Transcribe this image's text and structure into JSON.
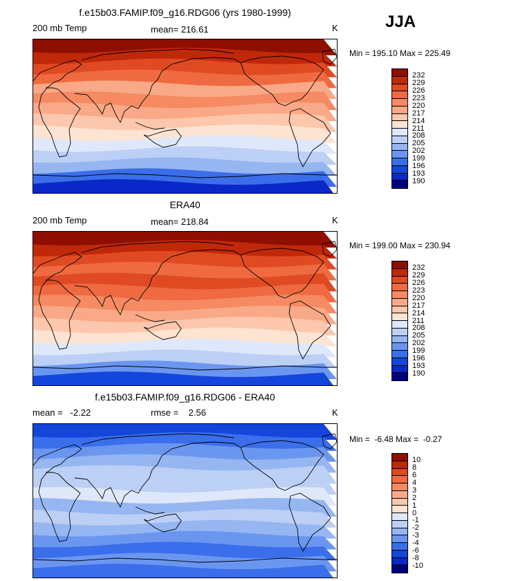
{
  "season": "JJA",
  "colors": {
    "temp": [
      "#000080",
      "#0a28c8",
      "#1446dc",
      "#3a6eea",
      "#6a96f0",
      "#96b6f2",
      "#bccff5",
      "#dfe8fa",
      "#fde3d2",
      "#fcc7ac",
      "#f9a987",
      "#f58a63",
      "#ef6a40",
      "#e04a22",
      "#c0280a",
      "#8e0e00"
    ],
    "diff": [
      "#000080",
      "#0a28c8",
      "#1446dc",
      "#3a6eea",
      "#6a96f0",
      "#96b6f2",
      "#bccff5",
      "#dfe8fa",
      "#fde3d2",
      "#fcc7ac",
      "#f9a987",
      "#f58a63",
      "#ef6a40",
      "#e04a22",
      "#c0280a",
      "#8e0e00"
    ]
  },
  "panels": [
    {
      "title": "f.e15b03.FAMIP.f09_g16.RDG06 (yrs 1980-1999)",
      "left_label": "200 mb Temp",
      "center_label": "mean= 216.61",
      "unit": "K",
      "minmax": "Min = 195.10 Max = 225.49",
      "levels": [
        "232",
        "229",
        "226",
        "223",
        "220",
        "217",
        "214",
        "211",
        "208",
        "205",
        "202",
        "199",
        "196",
        "193",
        "190"
      ],
      "bands": [
        15,
        14,
        13,
        12,
        10,
        11,
        10,
        9,
        8,
        7,
        6,
        5,
        3,
        1
      ]
    },
    {
      "title": "ERA40",
      "left_label": "200 mb Temp",
      "center_label": "mean= 218.84",
      "unit": "K",
      "minmax": "Min = 199.00 Max = 230.94",
      "levels": [
        "232",
        "229",
        "226",
        "223",
        "220",
        "217",
        "214",
        "211",
        "208",
        "205",
        "202",
        "199",
        "196",
        "193",
        "190"
      ],
      "bands": [
        15,
        14,
        13,
        12,
        13,
        12,
        11,
        10,
        9,
        8,
        7,
        6,
        4,
        2
      ]
    },
    {
      "title": "f.e15b03.FAMIP.f09_g16.RDG06 - ERA40",
      "left_label": "mean =   -2.22",
      "center_label": "rmse =    2.56",
      "unit": "K",
      "minmax": "Min =  -6.48 Max =  -0.27",
      "levels": [
        "10",
        "8",
        "6",
        "4",
        "3",
        "2",
        "1",
        "0",
        "-1",
        "-2",
        "-3",
        "-4",
        "-6",
        "-8",
        "-10"
      ],
      "bands": [
        2,
        3,
        4,
        5,
        6,
        6,
        7,
        5,
        6,
        5,
        4,
        3,
        4,
        3
      ]
    }
  ]
}
